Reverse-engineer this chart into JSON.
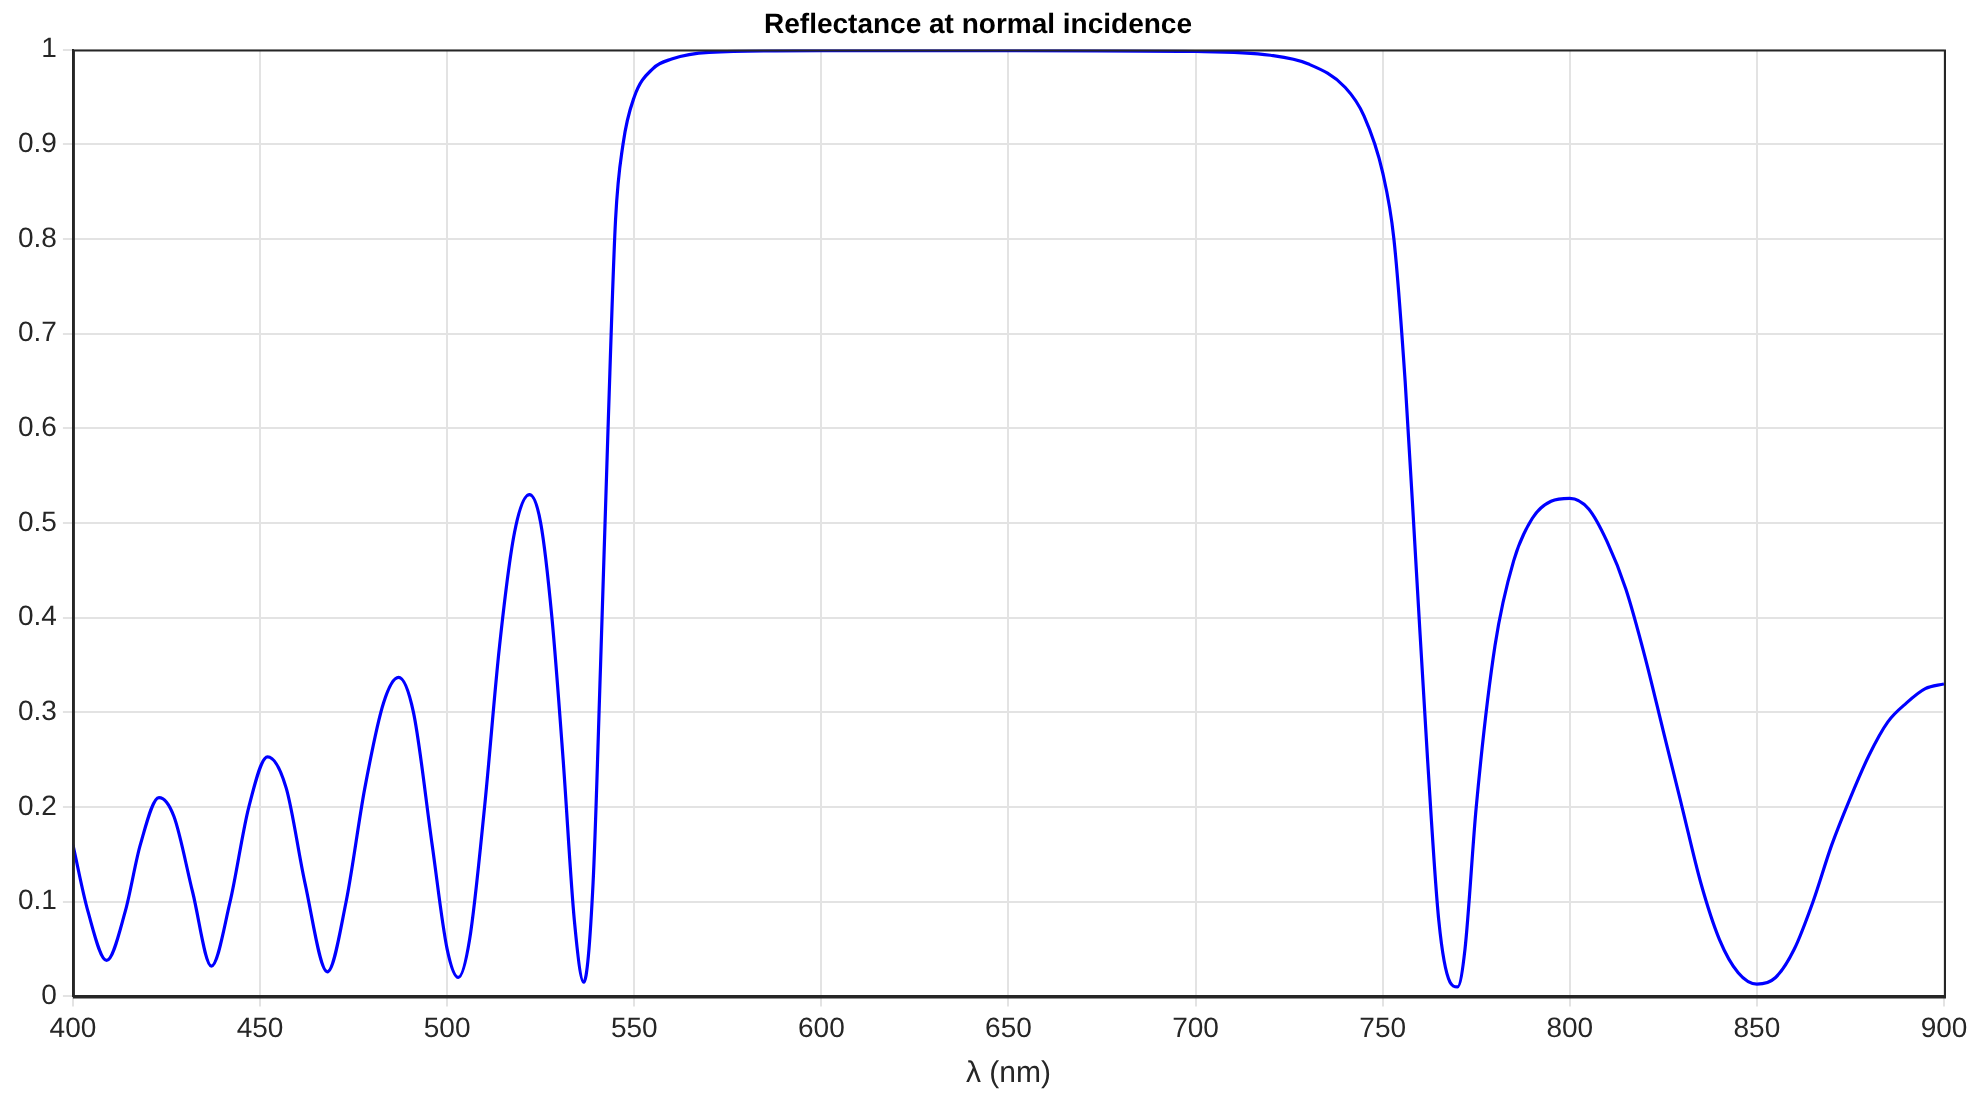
{
  "chart_data": {
    "type": "line",
    "title": "Reflectance at normal incidence",
    "xlabel": "λ (nm)",
    "xlim": [
      400,
      900
    ],
    "xticks": [
      400,
      450,
      500,
      550,
      600,
      650,
      700,
      750,
      800,
      850,
      900
    ],
    "ylim": [
      0,
      1
    ],
    "yticks": [
      0,
      0.1,
      0.2,
      0.3,
      0.4,
      0.5,
      0.6,
      0.7,
      0.8,
      0.9,
      1
    ],
    "grid": true,
    "legend": false,
    "marker": "none",
    "line_style": "solid",
    "series": [
      {
        "color": "#0000ff",
        "x": [
          400,
          404,
          409,
          414,
          418,
          423,
          427,
          432,
          437,
          442,
          447,
          452,
          457,
          462,
          468,
          473,
          478,
          483,
          487,
          491,
          496,
          500,
          503,
          506,
          510,
          514,
          518,
          522,
          525,
          528,
          531,
          534,
          536.5,
          539,
          541,
          543,
          545,
          547,
          550,
          555,
          560,
          570,
          600,
          650,
          700,
          720,
          730,
          740,
          745,
          750,
          753,
          756,
          759,
          762,
          765,
          768,
          770,
          772,
          775,
          780,
          785,
          790,
          795,
          800,
          805,
          810,
          815,
          820,
          825,
          830,
          835,
          840,
          845,
          850,
          855,
          860,
          865,
          870,
          875,
          880,
          885,
          890,
          895,
          900
        ],
        "values": [
          0.16,
          0.09,
          0.038,
          0.09,
          0.16,
          0.21,
          0.19,
          0.11,
          0.032,
          0.1,
          0.2,
          0.253,
          0.22,
          0.12,
          0.026,
          0.1,
          0.22,
          0.31,
          0.337,
          0.3,
          0.16,
          0.05,
          0.02,
          0.06,
          0.2,
          0.37,
          0.49,
          0.53,
          0.5,
          0.4,
          0.25,
          0.08,
          0.015,
          0.12,
          0.35,
          0.6,
          0.82,
          0.9,
          0.95,
          0.98,
          0.99,
          0.997,
          0.999,
          0.999,
          0.998,
          0.994,
          0.985,
          0.96,
          0.93,
          0.87,
          0.8,
          0.65,
          0.45,
          0.25,
          0.08,
          0.015,
          0.01,
          0.05,
          0.2,
          0.37,
          0.46,
          0.505,
          0.523,
          0.526,
          0.515,
          0.48,
          0.43,
          0.36,
          0.28,
          0.2,
          0.12,
          0.06,
          0.025,
          0.013,
          0.02,
          0.05,
          0.1,
          0.16,
          0.21,
          0.255,
          0.29,
          0.31,
          0.325,
          0.33
        ]
      }
    ]
  }
}
